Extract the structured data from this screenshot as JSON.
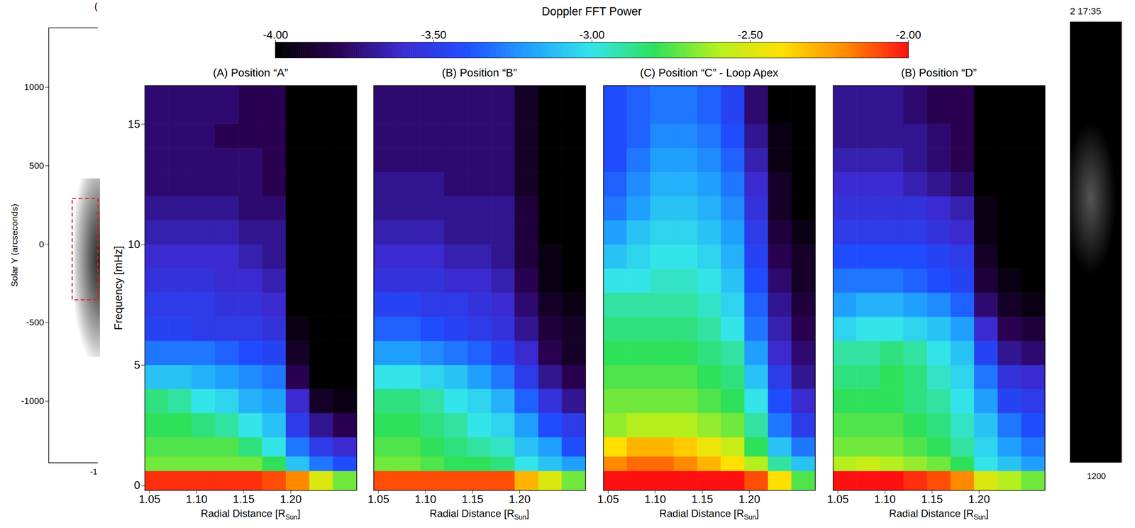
{
  "chart_data": [
    {
      "type": "heatmap",
      "title": "(A) Position “A”",
      "xlabel": "Radial Distance [RSun]",
      "ylabel": "Frequency [mHz]",
      "xlim": [
        1.045,
        1.27
      ],
      "ylim": [
        -0.2,
        16.6
      ],
      "xticks": [
        {
          "value": 1.05,
          "label": "1.05"
        },
        {
          "value": 1.1,
          "label": "1.10"
        },
        {
          "value": 1.15,
          "label": "1.15"
        },
        {
          "value": 1.2,
          "label": "1.20"
        }
      ],
      "yticks": [
        0,
        5,
        10,
        15
      ],
      "x_edges": [
        1.045,
        1.07,
        1.095,
        1.12,
        1.145,
        1.17,
        1.195,
        1.22,
        1.245,
        1.27
      ],
      "y_edges": [
        -0.2,
        0.6,
        1.2,
        2,
        3,
        4,
        5,
        6,
        7,
        8,
        9,
        10,
        11,
        12,
        13,
        14,
        15,
        16.6
      ],
      "values": [
        [
          -2.05,
          -2.05,
          -2.05,
          -2.05,
          -2.05,
          -2.1,
          -2.2,
          -2.5,
          -2.7
        ],
        [
          -2.7,
          -2.7,
          -2.7,
          -2.7,
          -2.7,
          -2.8,
          -3.1,
          -3.3,
          -3.4
        ],
        [
          -2.75,
          -2.75,
          -2.75,
          -2.75,
          -2.85,
          -3,
          -3.3,
          -3.5,
          -3.6
        ],
        [
          -2.8,
          -2.8,
          -2.85,
          -2.9,
          -3,
          -3.1,
          -3.5,
          -3.7,
          -3.8
        ],
        [
          -2.85,
          -2.9,
          -3,
          -3.05,
          -3.15,
          -3.2,
          -3.6,
          -3.9,
          -3.95
        ],
        [
          -3.1,
          -3.1,
          -3.15,
          -3.2,
          -3.25,
          -3.3,
          -3.8,
          -4,
          -4
        ],
        [
          -3.3,
          -3.3,
          -3.3,
          -3.35,
          -3.4,
          -3.45,
          -3.9,
          -4,
          -4
        ],
        [
          -3.45,
          -3.45,
          -3.5,
          -3.5,
          -3.5,
          -3.55,
          -3.95,
          -4,
          -4
        ],
        [
          -3.5,
          -3.5,
          -3.5,
          -3.55,
          -3.55,
          -3.6,
          -4,
          -4,
          -4
        ],
        [
          -3.55,
          -3.55,
          -3.55,
          -3.6,
          -3.6,
          -3.65,
          -4,
          -4,
          -4
        ],
        [
          -3.6,
          -3.6,
          -3.6,
          -3.6,
          -3.65,
          -3.7,
          -4,
          -4,
          -4
        ],
        [
          -3.65,
          -3.65,
          -3.65,
          -3.65,
          -3.7,
          -3.7,
          -4,
          -4,
          -4
        ],
        [
          -3.7,
          -3.7,
          -3.7,
          -3.7,
          -3.75,
          -3.75,
          -4,
          -4,
          -4
        ],
        [
          -3.75,
          -3.75,
          -3.75,
          -3.75,
          -3.75,
          -3.8,
          -4,
          -4,
          -4
        ],
        [
          -3.75,
          -3.75,
          -3.75,
          -3.75,
          -3.75,
          -3.8,
          -4,
          -4,
          -4
        ],
        [
          -3.75,
          -3.75,
          -3.75,
          -3.8,
          -3.8,
          -3.8,
          -4,
          -4,
          -4
        ],
        [
          -3.75,
          -3.75,
          -3.75,
          -3.75,
          -3.8,
          -3.8,
          -4,
          -4,
          -4
        ]
      ]
    },
    {
      "type": "heatmap",
      "title": "(B) Position “B”",
      "xlabel": "Radial Distance [RSun]",
      "tick_labels": "x",
      "xlim": [
        1.045,
        1.27
      ],
      "ylim": [
        -0.2,
        16.6
      ],
      "xticks": [
        {
          "value": 1.05,
          "label": "1.05"
        },
        {
          "value": 1.1,
          "label": "1.10"
        },
        {
          "value": 1.15,
          "label": "1.15"
        },
        {
          "value": 1.2,
          "label": "1.20"
        }
      ],
      "x_edges": [
        1.045,
        1.07,
        1.095,
        1.12,
        1.145,
        1.17,
        1.195,
        1.22,
        1.245,
        1.27
      ],
      "y_edges": [
        -0.2,
        0.6,
        1.2,
        2,
        3,
        4,
        5,
        6,
        7,
        8,
        9,
        10,
        11,
        12,
        13,
        14,
        15,
        16.6
      ],
      "values": [
        [
          -2.1,
          -2.1,
          -2.1,
          -2.1,
          -2.1,
          -2.1,
          -2.3,
          -2.5,
          -2.7
        ],
        [
          -2.7,
          -2.7,
          -2.75,
          -2.8,
          -2.8,
          -2.85,
          -3,
          -3.1,
          -3.2
        ],
        [
          -2.75,
          -2.75,
          -2.8,
          -2.85,
          -2.9,
          -2.95,
          -3.1,
          -3.2,
          -3.4
        ],
        [
          -2.8,
          -2.8,
          -2.85,
          -2.9,
          -3,
          -3.05,
          -3.2,
          -3.4,
          -3.5
        ],
        [
          -2.85,
          -2.85,
          -2.9,
          -3,
          -3.05,
          -3.15,
          -3.35,
          -3.55,
          -3.7
        ],
        [
          -3,
          -3,
          -3.05,
          -3.1,
          -3.2,
          -3.3,
          -3.5,
          -3.7,
          -3.8
        ],
        [
          -3.2,
          -3.2,
          -3.25,
          -3.3,
          -3.35,
          -3.45,
          -3.6,
          -3.8,
          -3.9
        ],
        [
          -3.35,
          -3.35,
          -3.4,
          -3.45,
          -3.5,
          -3.55,
          -3.7,
          -3.85,
          -3.9
        ],
        [
          -3.45,
          -3.45,
          -3.5,
          -3.5,
          -3.55,
          -3.6,
          -3.75,
          -3.9,
          -3.95
        ],
        [
          -3.55,
          -3.55,
          -3.55,
          -3.6,
          -3.6,
          -3.65,
          -3.8,
          -3.95,
          -4
        ],
        [
          -3.6,
          -3.6,
          -3.6,
          -3.65,
          -3.65,
          -3.7,
          -3.85,
          -3.95,
          -4
        ],
        [
          -3.65,
          -3.65,
          -3.65,
          -3.7,
          -3.7,
          -3.7,
          -3.85,
          -4,
          -4
        ],
        [
          -3.7,
          -3.7,
          -3.7,
          -3.7,
          -3.7,
          -3.7,
          -3.85,
          -4,
          -4
        ],
        [
          -3.7,
          -3.7,
          -3.7,
          -3.75,
          -3.75,
          -3.75,
          -3.9,
          -4,
          -4
        ],
        [
          -3.75,
          -3.75,
          -3.75,
          -3.75,
          -3.75,
          -3.75,
          -3.9,
          -4,
          -4
        ],
        [
          -3.75,
          -3.75,
          -3.75,
          -3.75,
          -3.75,
          -3.75,
          -3.9,
          -4,
          -4
        ],
        [
          -3.75,
          -3.75,
          -3.75,
          -3.75,
          -3.75,
          -3.75,
          -3.9,
          -4,
          -4
        ]
      ]
    },
    {
      "type": "heatmap",
      "title": "(C) Position “C” - Loop Apex",
      "xlabel": "Radial Distance [RSun]",
      "tick_labels": "x",
      "xlim": [
        1.045,
        1.27
      ],
      "ylim": [
        -0.2,
        16.6
      ],
      "xticks": [
        {
          "value": 1.05,
          "label": "1.05"
        },
        {
          "value": 1.1,
          "label": "1.10"
        },
        {
          "value": 1.15,
          "label": "1.15"
        },
        {
          "value": 1.2,
          "label": "1.20"
        }
      ],
      "x_edges": [
        1.045,
        1.07,
        1.095,
        1.12,
        1.145,
        1.17,
        1.195,
        1.22,
        1.245,
        1.27
      ],
      "y_edges": [
        -0.2,
        0.6,
        1.2,
        2,
        3,
        4,
        5,
        6,
        7,
        8,
        9,
        10,
        11,
        12,
        13,
        14,
        15,
        16.6
      ],
      "values": [
        [
          -2,
          -2,
          -2,
          -2,
          -2,
          -2,
          -2.1,
          -2.4,
          -2.75
        ],
        [
          -2.2,
          -2.15,
          -2.15,
          -2.2,
          -2.3,
          -2.4,
          -2.6,
          -2.9,
          -3.1
        ],
        [
          -2.4,
          -2.3,
          -2.3,
          -2.35,
          -2.45,
          -2.55,
          -2.8,
          -3.1,
          -3.3
        ],
        [
          -2.65,
          -2.6,
          -2.6,
          -2.6,
          -2.65,
          -2.7,
          -2.9,
          -3.3,
          -3.5
        ],
        [
          -2.7,
          -2.7,
          -2.7,
          -2.7,
          -2.75,
          -2.8,
          -3,
          -3.4,
          -3.6
        ],
        [
          -2.75,
          -2.75,
          -2.75,
          -2.75,
          -2.8,
          -2.85,
          -3.1,
          -3.5,
          -3.7
        ],
        [
          -2.8,
          -2.8,
          -2.8,
          -2.8,
          -2.85,
          -2.9,
          -3.2,
          -3.6,
          -3.75
        ],
        [
          -2.85,
          -2.85,
          -2.85,
          -2.85,
          -2.9,
          -3,
          -3.3,
          -3.65,
          -3.8
        ],
        [
          -2.9,
          -2.9,
          -2.9,
          -2.9,
          -2.95,
          -3.05,
          -3.35,
          -3.7,
          -3.85
        ],
        [
          -3,
          -3,
          -2.95,
          -2.95,
          -3,
          -3.1,
          -3.4,
          -3.75,
          -3.9
        ],
        [
          -3.1,
          -3.05,
          -3,
          -3,
          -3.05,
          -3.15,
          -3.45,
          -3.8,
          -3.9
        ],
        [
          -3.2,
          -3.1,
          -3.05,
          -3.05,
          -3.1,
          -3.2,
          -3.5,
          -3.85,
          -3.95
        ],
        [
          -3.3,
          -3.2,
          -3.1,
          -3.1,
          -3.15,
          -3.25,
          -3.55,
          -3.9,
          -4
        ],
        [
          -3.35,
          -3.25,
          -3.15,
          -3.15,
          -3.2,
          -3.3,
          -3.6,
          -3.9,
          -4
        ],
        [
          -3.4,
          -3.3,
          -3.2,
          -3.2,
          -3.25,
          -3.35,
          -3.65,
          -3.95,
          -4
        ],
        [
          -3.4,
          -3.35,
          -3.25,
          -3.25,
          -3.3,
          -3.4,
          -3.7,
          -3.95,
          -4
        ],
        [
          -3.4,
          -3.35,
          -3.3,
          -3.3,
          -3.35,
          -3.45,
          -3.75,
          -4,
          -4
        ]
      ]
    },
    {
      "type": "heatmap",
      "title": "(B) Position “D”",
      "xlabel": "Radial Distance [RSun]",
      "tick_labels": "x",
      "xlim": [
        1.045,
        1.27
      ],
      "ylim": [
        -0.2,
        16.6
      ],
      "xticks": [
        {
          "value": 1.05,
          "label": "1.05"
        },
        {
          "value": 1.1,
          "label": "1.10"
        },
        {
          "value": 1.15,
          "label": "1.15"
        },
        {
          "value": 1.2,
          "label": "1.20"
        }
      ],
      "x_edges": [
        1.045,
        1.07,
        1.095,
        1.12,
        1.145,
        1.17,
        1.195,
        1.22,
        1.245,
        1.27
      ],
      "y_edges": [
        -0.2,
        0.6,
        1.2,
        2,
        3,
        4,
        5,
        6,
        7,
        8,
        9,
        10,
        11,
        12,
        13,
        14,
        15,
        16.6
      ],
      "values": [
        [
          -2,
          -2,
          -2,
          -2.05,
          -2.1,
          -2.2,
          -2.5,
          -2.6,
          -2.7
        ],
        [
          -2.6,
          -2.55,
          -2.6,
          -2.65,
          -2.7,
          -2.8,
          -3,
          -3.1,
          -3.2
        ],
        [
          -2.7,
          -2.7,
          -2.7,
          -2.75,
          -2.8,
          -2.9,
          -3.05,
          -3.2,
          -3.3
        ],
        [
          -2.75,
          -2.75,
          -2.75,
          -2.8,
          -2.85,
          -2.95,
          -3.1,
          -3.3,
          -3.4
        ],
        [
          -2.8,
          -2.8,
          -2.8,
          -2.85,
          -2.9,
          -3,
          -3.2,
          -3.45,
          -3.5
        ],
        [
          -2.85,
          -2.85,
          -2.8,
          -2.85,
          -2.95,
          -3.05,
          -3.3,
          -3.55,
          -3.6
        ],
        [
          -2.9,
          -2.9,
          -2.85,
          -2.9,
          -3,
          -3.1,
          -3.45,
          -3.7,
          -3.75
        ],
        [
          -3.05,
          -3,
          -3,
          -3.05,
          -3.1,
          -3.2,
          -3.6,
          -3.8,
          -3.85
        ],
        [
          -3.2,
          -3.15,
          -3.15,
          -3.2,
          -3.25,
          -3.35,
          -3.75,
          -3.9,
          -3.95
        ],
        [
          -3.3,
          -3.3,
          -3.3,
          -3.35,
          -3.4,
          -3.45,
          -3.85,
          -3.95,
          -4
        ],
        [
          -3.4,
          -3.4,
          -3.4,
          -3.4,
          -3.45,
          -3.5,
          -3.9,
          -4,
          -4
        ],
        [
          -3.5,
          -3.5,
          -3.5,
          -3.5,
          -3.55,
          -3.6,
          -3.95,
          -4,
          -4
        ],
        [
          -3.55,
          -3.55,
          -3.55,
          -3.55,
          -3.6,
          -3.65,
          -3.95,
          -4,
          -4
        ],
        [
          -3.6,
          -3.6,
          -3.6,
          -3.65,
          -3.7,
          -3.75,
          -4,
          -4,
          -4
        ],
        [
          -3.65,
          -3.65,
          -3.65,
          -3.7,
          -3.75,
          -3.8,
          -4,
          -4,
          -4
        ],
        [
          -3.7,
          -3.7,
          -3.7,
          -3.7,
          -3.75,
          -3.8,
          -4,
          -4,
          -4
        ],
        [
          -3.7,
          -3.7,
          -3.7,
          -3.75,
          -3.8,
          -3.8,
          -4,
          -4,
          -4
        ]
      ]
    }
  ],
  "colorbar": {
    "label": "Doppler FFT Power",
    "range": [
      -4,
      -2
    ],
    "ticks": [
      {
        "value": -4,
        "label": "-4.00"
      },
      {
        "value": -3.5,
        "label": "-3.50"
      },
      {
        "value": -3,
        "label": "-3.00"
      },
      {
        "value": -2.5,
        "label": "-2.50"
      },
      {
        "value": -2,
        "label": "-2.00"
      }
    ]
  },
  "context_image": {
    "ylabel": "Solar Y (arcseconds)",
    "ylim": [
      -1392,
      1378
    ],
    "yticks": [
      1000,
      500,
      0,
      -500,
      -1000
    ],
    "box_y": [
      290,
      -355
    ],
    "title_fragment": "(",
    "x_tick_fragment": "-1"
  },
  "side_image": {
    "title_fragment": "2 17:35",
    "x_tick_fragment": "1200"
  }
}
